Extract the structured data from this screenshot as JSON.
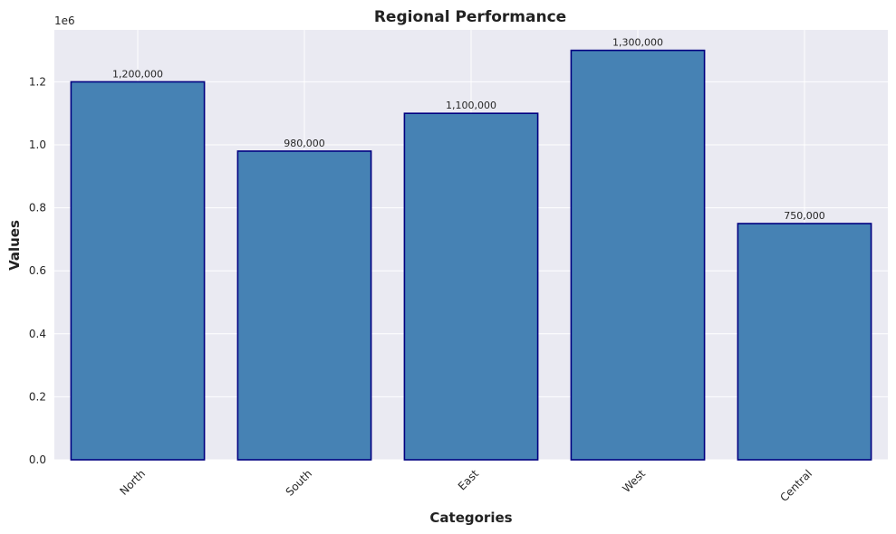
{
  "chart_data": {
    "type": "bar",
    "title": "Regional Performance",
    "xlabel": "Categories",
    "ylabel": "Values",
    "y_offset_label": "1e6",
    "categories": [
      "North",
      "South",
      "East",
      "West",
      "Central"
    ],
    "values": [
      1200000,
      980000,
      1100000,
      1300000,
      750000
    ],
    "value_labels": [
      "1,200,000",
      "980,000",
      "1,100,000",
      "1,300,000",
      "750,000"
    ],
    "ylim": [
      0,
      1365000
    ],
    "y_ticks": [
      0,
      200000,
      400000,
      600000,
      800000,
      1000000,
      1200000
    ],
    "y_tick_labels": [
      "0.0",
      "0.2",
      "0.4",
      "0.6",
      "0.8",
      "1.0",
      "1.2"
    ],
    "grid": true,
    "colors": {
      "background": "#eaeaf2",
      "grid": "#ffffff",
      "bar_fill": "#4682b4",
      "bar_edge": "#000080"
    }
  }
}
